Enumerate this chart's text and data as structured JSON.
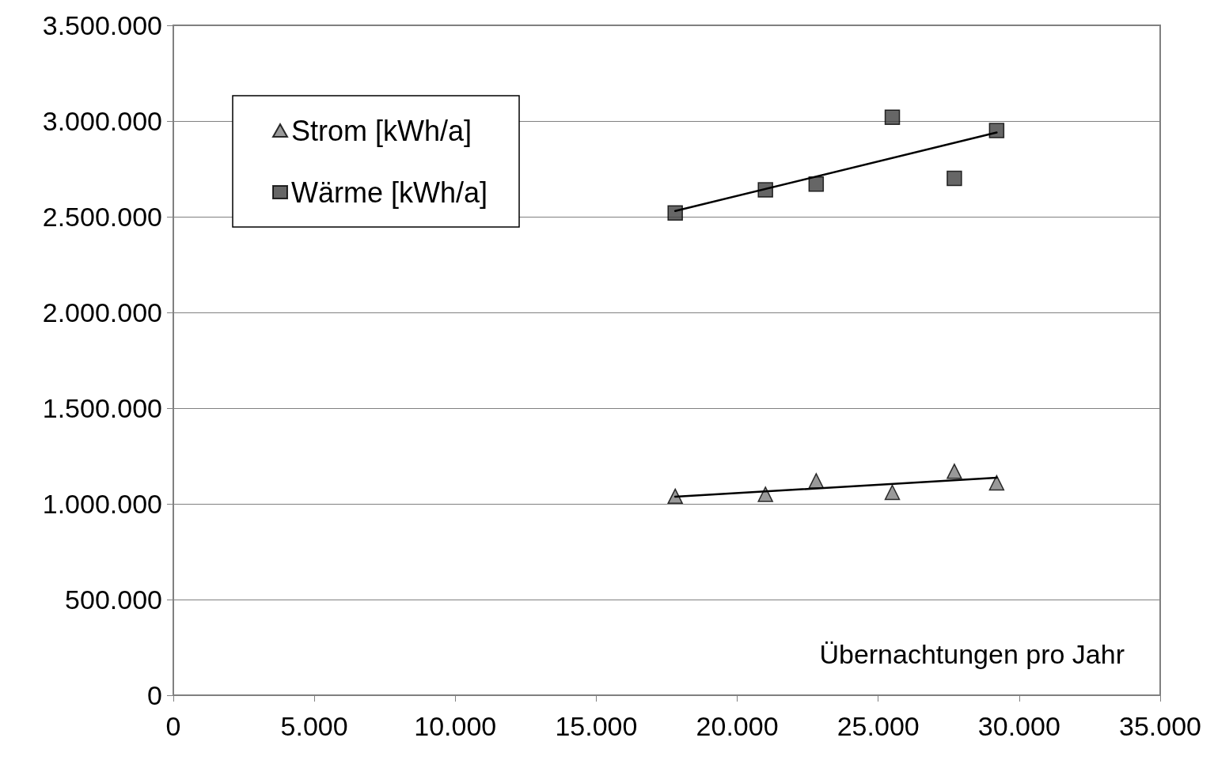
{
  "chart_data": {
    "type": "scatter",
    "xlabel": "Übernachtungen pro Jahr",
    "xlim": [
      0,
      35000
    ],
    "xticks": [
      {
        "value": 0,
        "label": "0"
      },
      {
        "value": 5000,
        "label": "5.000"
      },
      {
        "value": 10000,
        "label": "10.000"
      },
      {
        "value": 15000,
        "label": "15.000"
      },
      {
        "value": 20000,
        "label": "20.000"
      },
      {
        "value": 25000,
        "label": "25.000"
      },
      {
        "value": 30000,
        "label": "30.000"
      },
      {
        "value": 35000,
        "label": "35.000"
      }
    ],
    "ylim": [
      0,
      3500000
    ],
    "yticks": [
      {
        "value": 0,
        "label": "0"
      },
      {
        "value": 500000,
        "label": "500.000"
      },
      {
        "value": 1000000,
        "label": "1.000.000"
      },
      {
        "value": 1500000,
        "label": "1.500.000"
      },
      {
        "value": 2000000,
        "label": "2.000.000"
      },
      {
        "value": 2500000,
        "label": "2.500.000"
      },
      {
        "value": 3000000,
        "label": "3.000.000"
      },
      {
        "value": 3500000,
        "label": "3.500.000"
      }
    ],
    "grid": "y",
    "legend": "top left",
    "series": [
      {
        "name": "Strom [kWh/a]",
        "marker": "triangle",
        "color": "#808080",
        "x": [
          17800,
          21000,
          22800,
          25500,
          27700,
          29200
        ],
        "values": [
          1040000,
          1050000,
          1120000,
          1060000,
          1170000,
          1110000
        ]
      },
      {
        "name": "Wärme [kWh/a]",
        "marker": "square",
        "color": "#404040",
        "x": [
          17800,
          21000,
          22800,
          25500,
          27700,
          29200
        ],
        "values": [
          2520000,
          2640000,
          2670000,
          3020000,
          2700000,
          2950000
        ]
      },
      {
        "type": "line",
        "marker": "none",
        "color": "#000000",
        "x": [
          17800,
          29200
        ],
        "values": [
          1037000,
          1136000
        ]
      },
      {
        "type": "line",
        "marker": "none",
        "color": "#000000",
        "x": [
          17800,
          29200
        ],
        "values": [
          2530000,
          2940000
        ]
      }
    ]
  }
}
